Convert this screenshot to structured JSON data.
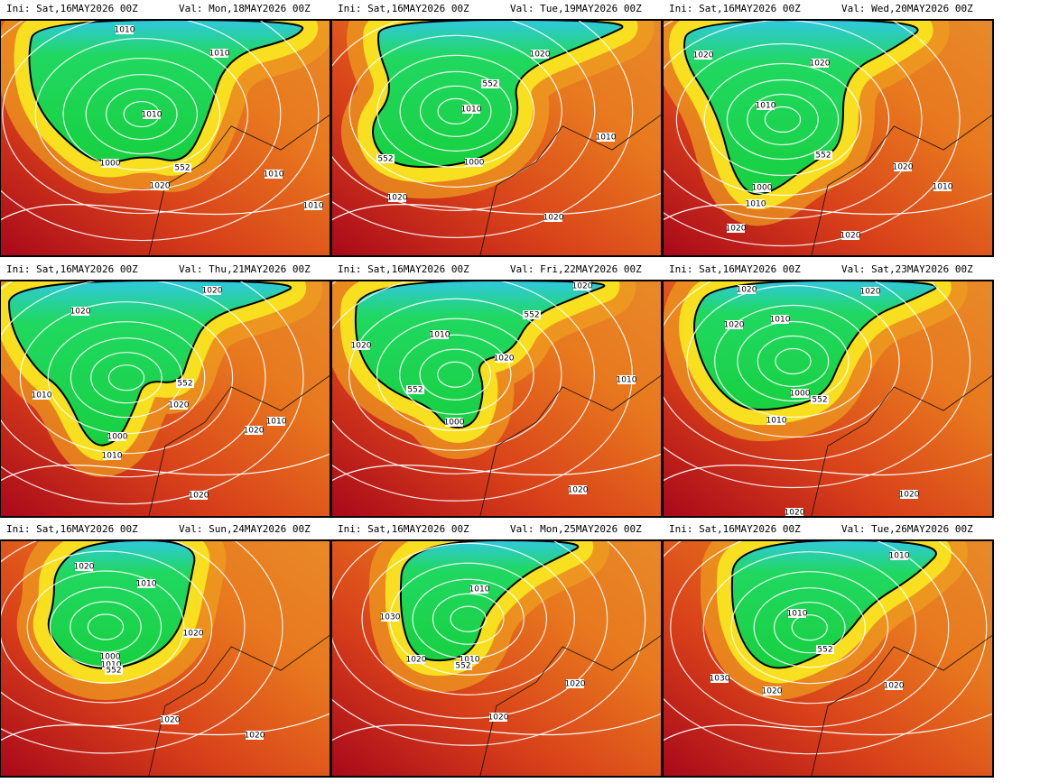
{
  "panels": [
    {
      "init": "Ini: Sat,16MAY2026 00Z",
      "valid": "Val: Mon,18MAY2026 00Z",
      "contour_labels": [
        "1010",
        "1010",
        "1010",
        "1000",
        "552",
        "1020",
        "1010",
        "1010"
      ]
    },
    {
      "init": "Ini: Sat,16MAY2026 00Z",
      "valid": "Val: Tue,19MAY2026 00Z",
      "contour_labels": [
        "1020",
        "552",
        "1010",
        "552",
        "1000",
        "1010",
        "1020",
        "1020"
      ]
    },
    {
      "init": "Ini: Sat,16MAY2026 00Z",
      "valid": "Val: Wed,20MAY2026 00Z",
      "contour_labels": [
        "1020",
        "1020",
        "1010",
        "552",
        "1000",
        "1010",
        "1020",
        "1010",
        "1020",
        "1020"
      ]
    },
    {
      "init": "Ini: Sat,16MAY2026 00Z",
      "valid": "Val: Thu,21MAY2026 00Z",
      "contour_labels": [
        "1020",
        "1020",
        "552",
        "1010",
        "1020",
        "1010",
        "1020",
        "1000",
        "1010",
        "1020"
      ]
    },
    {
      "init": "Ini: Sat,16MAY2026 00Z",
      "valid": "Val: Fri,22MAY2026 00Z",
      "contour_labels": [
        "1020",
        "552",
        "1010",
        "1020",
        "1020",
        "552",
        "1010",
        "1000",
        "1020"
      ]
    },
    {
      "init": "Ini: Sat,16MAY2026 00Z",
      "valid": "Val: Sat,23MAY2026 00Z",
      "contour_labels": [
        "1020",
        "1020",
        "1010",
        "1020",
        "1000",
        "552",
        "1010",
        "1020",
        "1020"
      ]
    },
    {
      "init": "Ini: Sat,16MAY2026 00Z",
      "valid": "Val: Sun,24MAY2026 00Z",
      "contour_labels": [
        "1020",
        "1010",
        "1020",
        "1000",
        "1010",
        "552",
        "1020",
        "1020"
      ]
    },
    {
      "init": "Ini: Sat,16MAY2026 00Z",
      "valid": "Val: Mon,25MAY2026 00Z",
      "contour_labels": [
        "1010",
        "1030",
        "1020",
        "1010",
        "552",
        "1020",
        "1020"
      ]
    },
    {
      "init": "Ini: Sat,16MAY2026 00Z",
      "valid": "Val: Tue,26MAY2026 00Z",
      "contour_labels": [
        "1010",
        "1010",
        "552",
        "1030",
        "1020",
        "1020"
      ]
    }
  ]
}
